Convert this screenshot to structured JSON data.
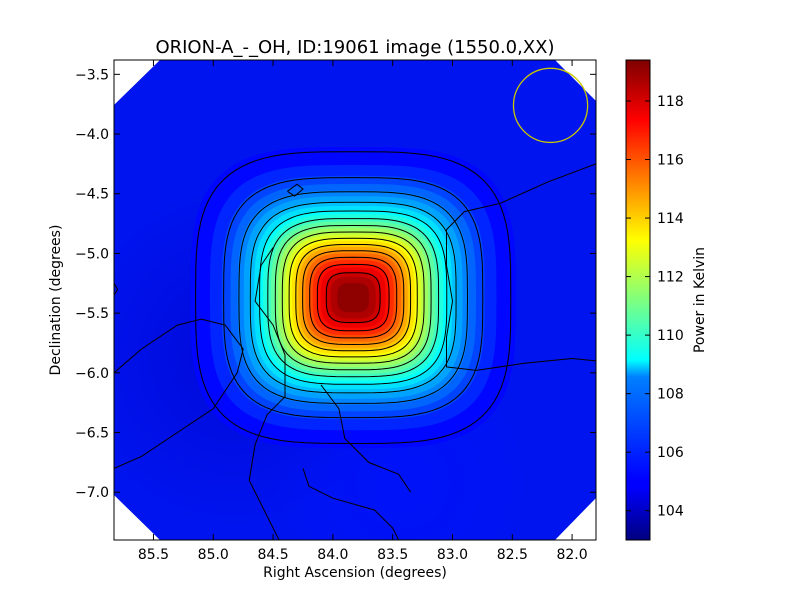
{
  "chart_data": {
    "type": "heatmap",
    "title": "ORION-A_-_OH, ID:19061 image (1550.0,XX)",
    "xlabel": "Right Ascension (degrees)",
    "ylabel": "Declination (degrees)",
    "xlim": [
      85.83,
      81.8
    ],
    "ylim": [
      -7.4,
      -3.38
    ],
    "xticks": [
      85.5,
      85.0,
      84.5,
      84.0,
      83.5,
      83.0,
      82.5,
      82.0
    ],
    "xtick_labels": [
      "85.5",
      "85.0",
      "84.5",
      "84.0",
      "83.5",
      "83.0",
      "82.5",
      "82.0"
    ],
    "yticks": [
      -3.5,
      -4.0,
      -4.5,
      -5.0,
      -5.5,
      -6.0,
      -6.5,
      -7.0
    ],
    "ytick_labels": [
      "−3.5",
      "−4.0",
      "−4.5",
      "−5.0",
      "−5.5",
      "−6.0",
      "−6.5",
      "−7.0"
    ],
    "colorbar": {
      "label": "Power in Kelvin",
      "range": [
        103.0,
        119.4
      ],
      "ticks": [
        104,
        106,
        108,
        110,
        112,
        114,
        116,
        118
      ],
      "tick_labels": [
        "104",
        "106",
        "108",
        "110",
        "112",
        "114",
        "116",
        "118"
      ],
      "colormap": "jet"
    },
    "peak": {
      "ra": 83.83,
      "dec": -5.37,
      "value": 119.4
    },
    "background_level": 104.5,
    "contour_levels": [
      105,
      106,
      107,
      108,
      109,
      110,
      111,
      112,
      113,
      114,
      115,
      116,
      117,
      118
    ],
    "beam_circle": {
      "ra": 82.18,
      "dec": -3.76,
      "radius_deg": 0.31,
      "color": "#c8c800"
    },
    "contour_color": "#000000",
    "masked_color": "#ffffff"
  }
}
